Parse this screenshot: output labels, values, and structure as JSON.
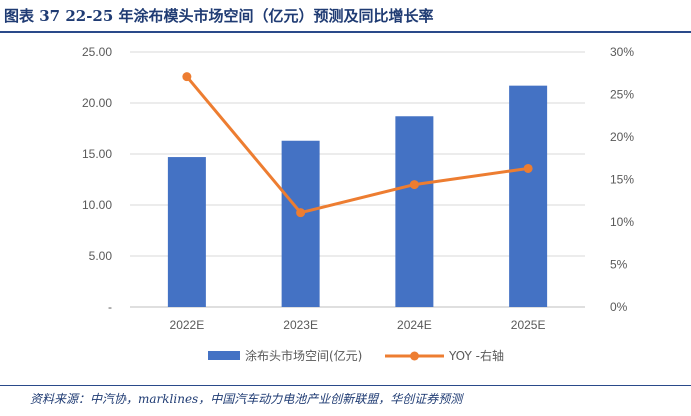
{
  "figure": {
    "title": "图表 37    22-25 年涂布模头市场空间（亿元）预测及同比增长率",
    "source": "资料来源：中汽协，marklines，中国汽车动力电池产业创新联盟，华创证券预测"
  },
  "chart_data": {
    "type": "bar",
    "categories": [
      "2022E",
      "2023E",
      "2024E",
      "2025E"
    ],
    "series": [
      {
        "name": "涂布头市场空间(亿元)",
        "type": "bar",
        "axis": "left",
        "color": "#4472c4",
        "values": [
          14.7,
          16.3,
          18.7,
          21.7
        ]
      },
      {
        "name": "YOY -右轴",
        "type": "line",
        "axis": "right",
        "color": "#ed7d31",
        "values": [
          0.271,
          0.111,
          0.144,
          0.163
        ]
      }
    ],
    "y_left": {
      "ylim": [
        0,
        25
      ],
      "ticks": [
        0,
        5,
        10,
        15,
        20,
        25
      ],
      "tick_labels": [
        "-",
        "5.00",
        "10.00",
        "15.00",
        "20.00",
        "25.00"
      ]
    },
    "y_right": {
      "ylim": [
        0,
        0.3
      ],
      "ticks": [
        0,
        0.05,
        0.1,
        0.15,
        0.2,
        0.25,
        0.3
      ],
      "tick_labels": [
        "0%",
        "5%",
        "10%",
        "15%",
        "20%",
        "25%",
        "30%"
      ]
    },
    "grid": true,
    "legend": "bottom"
  }
}
